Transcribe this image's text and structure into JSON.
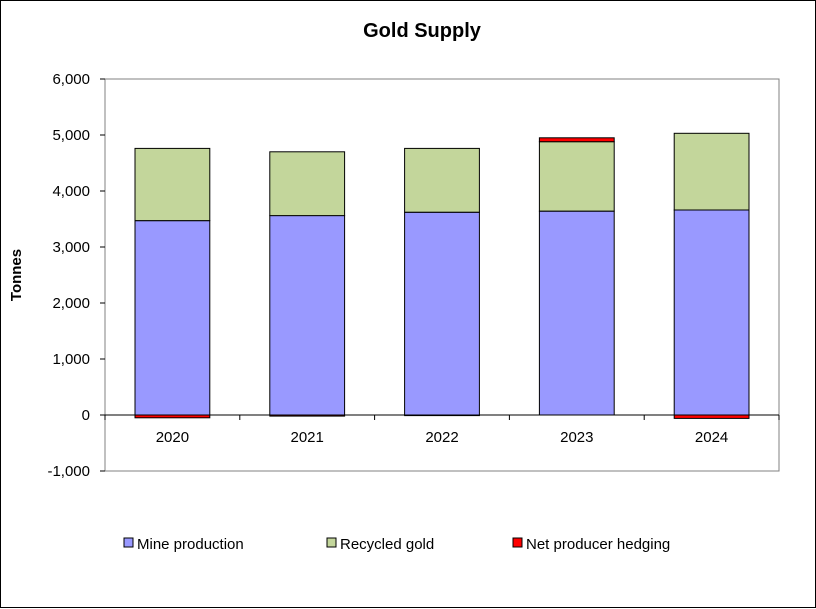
{
  "chart_data": {
    "type": "bar",
    "stacked": true,
    "title": "Gold Supply",
    "xlabel": "",
    "ylabel": "Tonnes",
    "categories": [
      "2020",
      "2021",
      "2022",
      "2023",
      "2024"
    ],
    "ylim": [
      -1000,
      6000
    ],
    "yticks": [
      6000,
      5000,
      4000,
      3000,
      2000,
      1000,
      0,
      -1000
    ],
    "ytick_labels": [
      "6,000",
      "5,000",
      "4,000",
      "3,000",
      "2,000",
      "1,000",
      "0",
      "-1,000"
    ],
    "series": [
      {
        "name": "Mine production",
        "color": "#9999ff",
        "values": [
          3470,
          3560,
          3620,
          3640,
          3660
        ]
      },
      {
        "name": "Recycled gold",
        "color": "#c3d69b",
        "values": [
          1290,
          1140,
          1140,
          1240,
          1370
        ]
      },
      {
        "name": "Net producer hedging",
        "color": "#ff0000",
        "values": [
          -50,
          -20,
          -10,
          70,
          -60
        ]
      }
    ],
    "legend_position": "bottom",
    "grid": false
  }
}
